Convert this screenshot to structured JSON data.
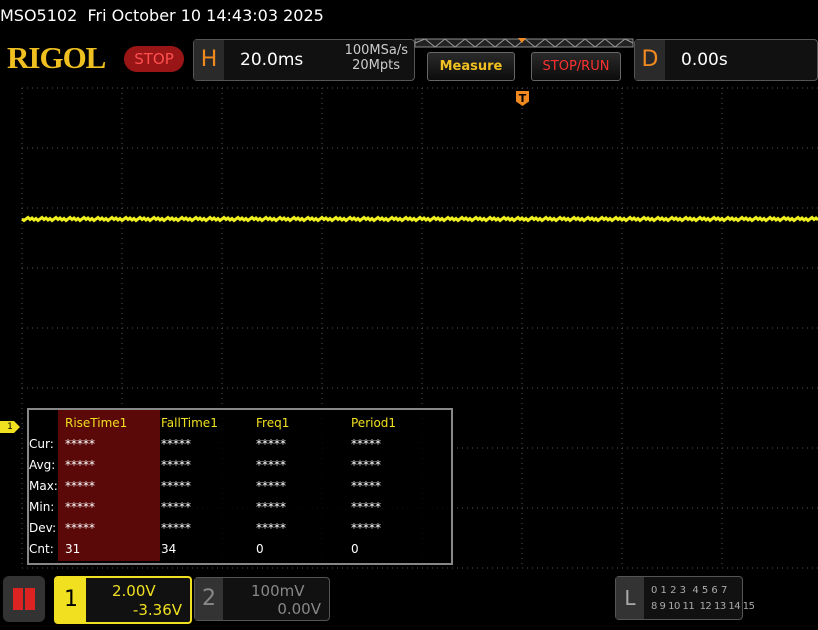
{
  "status_bar": {
    "text": "MSO5102  Fri October 10 14:43:03 2025"
  },
  "toolbar": {
    "logo": "RIGOL",
    "run_state": "STOP",
    "horizontal": {
      "label": "H",
      "timebase": "20.0ms",
      "sample_rate": "100MSa/s",
      "memory_depth": "20Mpts"
    },
    "measure_button": "Measure",
    "stop_run_button": "STOP/RUN",
    "delay": {
      "label": "D",
      "value": "0.00s"
    }
  },
  "screen": {
    "trigger_marker": "T",
    "channel_marker": "1"
  },
  "measure_table": {
    "headers": [
      "RiseTime1",
      "FallTime1",
      "Freq1",
      "Period1"
    ],
    "rows": [
      {
        "label": "Cur:",
        "values": [
          "*****",
          "*****",
          "*****",
          "*****"
        ]
      },
      {
        "label": "Avg:",
        "values": [
          "*****",
          "*****",
          "*****",
          "*****"
        ]
      },
      {
        "label": "Max:",
        "values": [
          "*****",
          "*****",
          "*****",
          "*****"
        ]
      },
      {
        "label": "Min:",
        "values": [
          "*****",
          "*****",
          "*****",
          "*****"
        ]
      },
      {
        "label": "Dev:",
        "values": [
          "*****",
          "*****",
          "*****",
          "*****"
        ]
      },
      {
        "label": "Cnt:",
        "values": [
          31,
          34,
          0,
          0
        ]
      }
    ]
  },
  "channels": [
    {
      "number": "1",
      "scale": "2.00V",
      "offset": "-3.36V"
    },
    {
      "number": "2",
      "scale": "100mV",
      "offset": "0.00V"
    }
  ],
  "logic": {
    "label": "L",
    "row1": "0 1 2 3  4 5 6 7",
    "row2": "8 9 10 11  12 13 14 15"
  }
}
